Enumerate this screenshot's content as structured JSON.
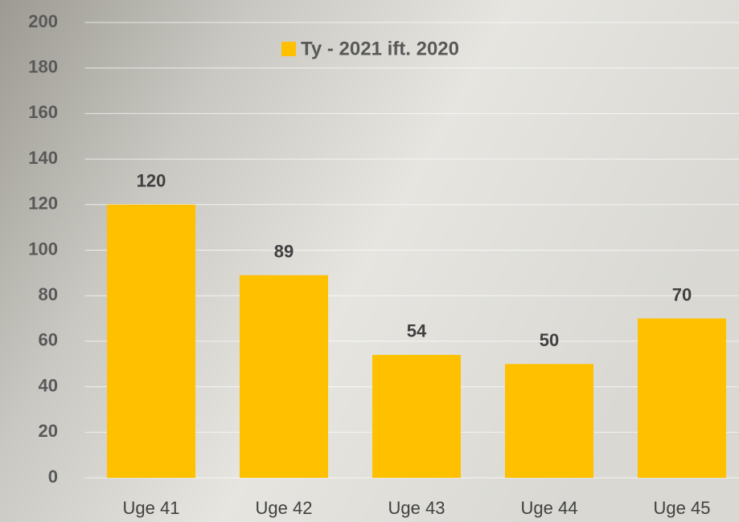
{
  "chart_data": {
    "type": "bar",
    "categories": [
      "Uge 41",
      "Uge 42",
      "Uge 43",
      "Uge 44",
      "Uge 45"
    ],
    "series": [
      {
        "name": "Ty - 2021 ift. 2020",
        "color": "#FFC000",
        "values": [
          120,
          89,
          54,
          50,
          70
        ]
      }
    ],
    "ylim": [
      0,
      200
    ],
    "yticks": [
      0,
      20,
      40,
      60,
      80,
      100,
      120,
      140,
      160,
      180,
      200
    ],
    "grid": true,
    "legend": "top"
  }
}
